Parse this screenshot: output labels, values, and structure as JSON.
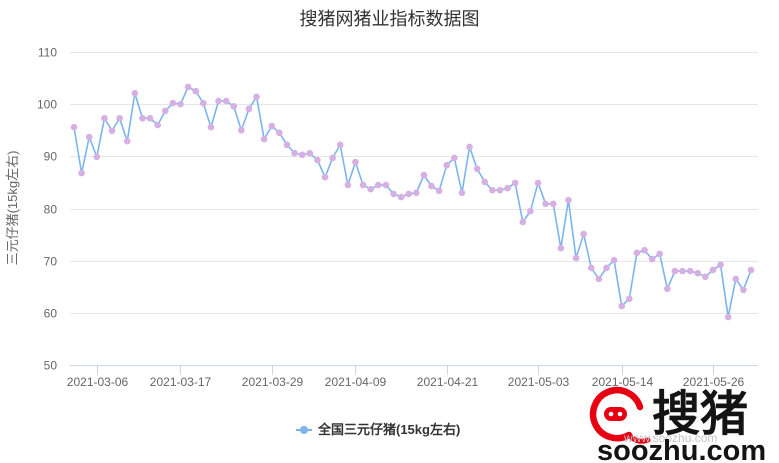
{
  "colors": {
    "line": "#7cb5ec",
    "marker": "#d6b0e2",
    "logo": "#e60012"
  },
  "watermark": {
    "logo_icon": "soozhu-pig-logo-icon",
    "brand_cn": "搜猪",
    "site": "www.soozhu.com",
    "brand_en": "soozhu.com"
  },
  "chart_data": {
    "type": "line",
    "title": "搜猪网猪业指标数据图",
    "ylabel": "三元仔猪(15kg左右)",
    "ylim": [
      50,
      110
    ],
    "y_ticks": [
      50,
      60,
      70,
      80,
      90,
      100,
      110
    ],
    "x_ticks": [
      {
        "index": 3,
        "label": "2021-03-06"
      },
      {
        "index": 14,
        "label": "2021-03-17"
      },
      {
        "index": 26,
        "label": "2021-03-29"
      },
      {
        "index": 37,
        "label": "2021-04-09"
      },
      {
        "index": 49,
        "label": "2021-04-21"
      },
      {
        "index": 61,
        "label": "2021-05-03"
      },
      {
        "index": 72,
        "label": "2021-05-14"
      },
      {
        "index": 84,
        "label": "2021-05-26"
      }
    ],
    "grid": true,
    "legend_position": "bottom",
    "series": [
      {
        "name": "全国三元仔猪(15kg左右)",
        "values": [
          95.6,
          86.8,
          93.7,
          89.9,
          97.3,
          94.9,
          97.3,
          92.9,
          102.1,
          97.3,
          97.3,
          96.0,
          98.7,
          100.2,
          100.0,
          103.3,
          102.5,
          100.2,
          95.6,
          100.6,
          100.6,
          99.6,
          95.0,
          99.1,
          101.4,
          93.3,
          95.8,
          94.5,
          92.2,
          90.6,
          90.3,
          90.6,
          89.3,
          86.0,
          89.7,
          92.2,
          84.5,
          88.9,
          84.5,
          83.7,
          84.5,
          84.5,
          82.8,
          82.2,
          82.8,
          83.0,
          86.4,
          84.3,
          83.4,
          88.3,
          89.7,
          83.0,
          91.8,
          87.6,
          85.1,
          83.5,
          83.5,
          83.9,
          84.9,
          77.4,
          79.5,
          84.9,
          80.9,
          80.9,
          72.4,
          81.6,
          70.5,
          75.1,
          68.6,
          66.5,
          68.6,
          70.1,
          61.3,
          62.7,
          71.5,
          72.0,
          70.3,
          71.3,
          64.6,
          68.0,
          68.0,
          68.0,
          67.6,
          66.9,
          68.2,
          69.2,
          59.2,
          66.5,
          64.4,
          68.2
        ]
      }
    ]
  }
}
